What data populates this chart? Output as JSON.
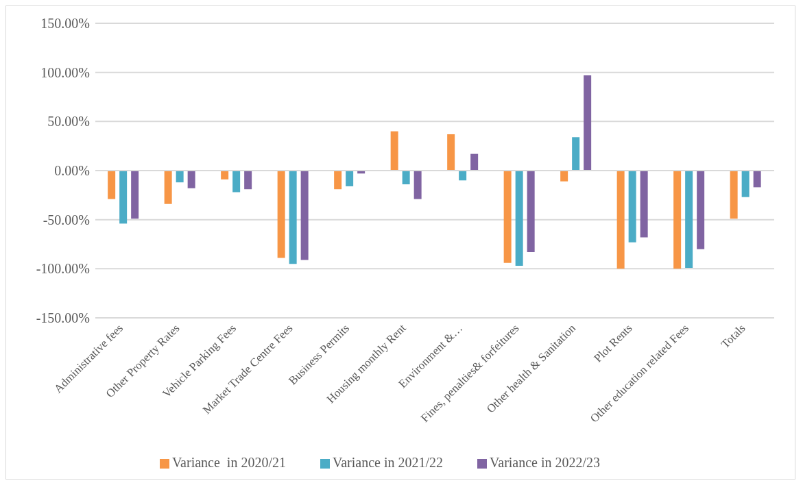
{
  "chart_data": {
    "type": "bar",
    "categories": [
      "Administrative fees",
      "Other Property Rates",
      "Vehicle Parking Fees",
      "Market Trade Centre Fees",
      "Business Permits",
      "Housing monthly Rent",
      "Environment &…",
      "Fines, penalties& forfeitures",
      "Other health & Sanitation",
      "Plot Rents",
      "Other education related Fees",
      "Totals"
    ],
    "series": [
      {
        "name": "Variance  in 2020/21",
        "color": "#f79646",
        "values": [
          -29,
          -34,
          -9,
          -89,
          -19,
          40,
          37,
          -94,
          -11,
          -100,
          -100,
          -49
        ]
      },
      {
        "name": "Variance in 2021/22",
        "color": "#4bacc6",
        "values": [
          -54,
          -12,
          -22,
          -95,
          -16,
          -14,
          -10,
          -97,
          34,
          -73,
          -99,
          -27
        ]
      },
      {
        "name": "Variance in 2022/23",
        "color": "#8064a2",
        "values": [
          -49,
          -18,
          -19,
          -91,
          -3,
          -29,
          17,
          -83,
          97,
          -68,
          -80,
          -17
        ]
      }
    ],
    "ylim": [
      -150,
      150
    ],
    "yticks": [
      {
        "value": -150,
        "label": "-150.00%"
      },
      {
        "value": -100,
        "label": "-100.00%"
      },
      {
        "value": -50,
        "label": "-50.00%"
      },
      {
        "value": 0,
        "label": "0.00%"
      },
      {
        "value": 50,
        "label": "50.00%"
      },
      {
        "value": 100,
        "label": "100.00%"
      },
      {
        "value": 150,
        "label": "150.00%"
      }
    ],
    "grid": "y",
    "legend": "bottom"
  }
}
